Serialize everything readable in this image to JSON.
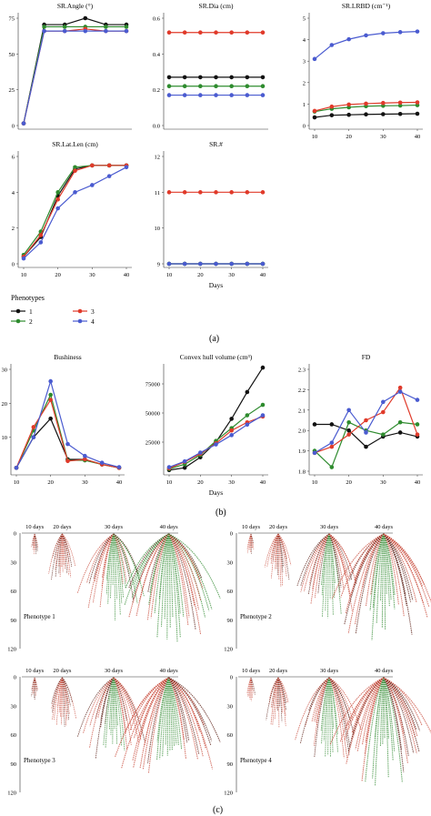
{
  "panel_labels": [
    "(a)",
    "(b)",
    "(c)"
  ],
  "colors": {
    "1": "#111111",
    "2": "#2e8b2e",
    "3": "#e03a2a",
    "4": "#4a5bd0"
  },
  "legend": {
    "title": "Phenotypes",
    "items": [
      "1",
      "2",
      "3",
      "4"
    ]
  },
  "chart_data": [
    {
      "type": "line",
      "title": "SR.Angle (°)",
      "x": [
        0,
        5,
        10,
        15,
        20,
        25
      ],
      "ylim": [
        0,
        50
      ],
      "yticks": [
        "0",
        "25",
        "50",
        "75"
      ],
      "xticks": [],
      "series": [
        {
          "name": "1",
          "values": [
            1,
            47,
            47,
            50,
            47,
            47
          ]
        },
        {
          "name": "2",
          "values": [
            1,
            46,
            46,
            46,
            46,
            46
          ]
        },
        {
          "name": "3",
          "values": [
            1,
            44,
            44,
            45,
            44,
            44
          ]
        },
        {
          "name": "4",
          "values": [
            1,
            44,
            44,
            44,
            44,
            44
          ]
        }
      ]
    },
    {
      "type": "line",
      "title": "SR.Dia (cm)",
      "x": [
        10,
        15,
        20,
        25,
        30,
        35,
        40
      ],
      "ylim": [
        0,
        0.6
      ],
      "yticks": [
        "0.0",
        "0.2",
        "0.4",
        "0.6"
      ],
      "xticks": [],
      "series": [
        {
          "name": "1",
          "values": [
            0.27,
            0.27,
            0.27,
            0.27,
            0.27,
            0.27,
            0.27
          ]
        },
        {
          "name": "2",
          "values": [
            0.22,
            0.22,
            0.22,
            0.22,
            0.22,
            0.22,
            0.22
          ]
        },
        {
          "name": "3",
          "values": [
            0.52,
            0.52,
            0.52,
            0.52,
            0.52,
            0.52,
            0.52
          ]
        },
        {
          "name": "4",
          "values": [
            0.17,
            0.17,
            0.17,
            0.17,
            0.17,
            0.17,
            0.17
          ]
        }
      ]
    },
    {
      "type": "line",
      "title": "SR.LRBD (cm⁻¹)",
      "x": [
        10,
        15,
        20,
        25,
        30,
        35,
        40
      ],
      "ylim": [
        0,
        5
      ],
      "yticks": [
        "0",
        "1",
        "2",
        "3",
        "4",
        "5"
      ],
      "xticks": [
        "10",
        "20",
        "30",
        "40"
      ],
      "series": [
        {
          "name": "1",
          "values": [
            0.38,
            0.48,
            0.5,
            0.52,
            0.53,
            0.54,
            0.55
          ]
        },
        {
          "name": "2",
          "values": [
            0.65,
            0.78,
            0.85,
            0.9,
            0.92,
            0.93,
            0.95
          ]
        },
        {
          "name": "3",
          "values": [
            0.68,
            0.88,
            0.98,
            1.02,
            1.05,
            1.07,
            1.08
          ]
        },
        {
          "name": "4",
          "values": [
            3.1,
            3.75,
            4.02,
            4.2,
            4.3,
            4.35,
            4.38
          ]
        }
      ]
    },
    {
      "type": "line",
      "title": "SR.Lat.Len (cm)",
      "x": [
        10,
        15,
        20,
        25,
        30,
        35,
        40
      ],
      "ylim": [
        0,
        6
      ],
      "yticks": [
        "0",
        "2",
        "4",
        "6"
      ],
      "xticks": [
        "10",
        "20",
        "30",
        "40"
      ],
      "series": [
        {
          "name": "1",
          "values": [
            0.4,
            1.5,
            3.8,
            5.3,
            5.5,
            5.5,
            5.5
          ]
        },
        {
          "name": "2",
          "values": [
            0.5,
            1.8,
            4.0,
            5.4,
            5.5,
            5.5,
            5.5
          ]
        },
        {
          "name": "3",
          "values": [
            0.4,
            1.6,
            3.6,
            5.2,
            5.5,
            5.5,
            5.5
          ]
        },
        {
          "name": "4",
          "values": [
            0.3,
            1.2,
            3.1,
            4.0,
            4.4,
            4.9,
            5.4
          ]
        }
      ]
    },
    {
      "type": "line",
      "title": "SR.#",
      "x": [
        10,
        15,
        20,
        25,
        30,
        35,
        40
      ],
      "ylim": [
        9,
        12
      ],
      "yticks": [
        "9",
        "10",
        "11",
        "12"
      ],
      "xticks": [
        "10",
        "20",
        "30",
        "40"
      ],
      "xlabel": "Days",
      "series": [
        {
          "name": "1",
          "values": [
            9,
            9,
            9,
            9,
            9,
            9,
            9
          ]
        },
        {
          "name": "2",
          "values": [
            9,
            9,
            9,
            9,
            9,
            9,
            9
          ]
        },
        {
          "name": "3",
          "values": [
            11,
            11,
            11,
            11,
            11,
            11,
            11
          ]
        },
        {
          "name": "4",
          "values": [
            9,
            9,
            9,
            9,
            9,
            9,
            9
          ]
        }
      ]
    },
    {
      "type": "line",
      "title": "Bushiness",
      "x": [
        10,
        15,
        20,
        25,
        30,
        35,
        40
      ],
      "ylim": [
        0,
        30
      ],
      "yticks": [
        "10",
        "20",
        "30"
      ],
      "xticks": [
        "10",
        "20",
        "30",
        "40"
      ],
      "series": [
        {
          "name": "1",
          "values": [
            1,
            10,
            15.5,
            3.5,
            3.5,
            2,
            1
          ]
        },
        {
          "name": "2",
          "values": [
            1,
            12,
            22.5,
            3.2,
            3.2,
            2,
            1
          ]
        },
        {
          "name": "3",
          "values": [
            1,
            13,
            21,
            3,
            3.5,
            2,
            1
          ]
        },
        {
          "name": "4",
          "values": [
            1,
            10,
            26.5,
            8,
            4.5,
            2.5,
            1.2
          ]
        }
      ]
    },
    {
      "type": "line",
      "title": "Convex hull volume (cm³)",
      "x": [
        10,
        15,
        20,
        25,
        30,
        35,
        40
      ],
      "ylim": [
        0,
        87500
      ],
      "yticks": [
        "25000",
        "50000",
        "75000"
      ],
      "xticks": [
        "10",
        "20",
        "30",
        "40"
      ],
      "xlabel": "Days",
      "series": [
        {
          "name": "1",
          "values": [
            1000,
            3000,
            12000,
            25000,
            45000,
            68000,
            89000
          ]
        },
        {
          "name": "2",
          "values": [
            2000,
            6000,
            14000,
            26000,
            37000,
            48000,
            57000
          ]
        },
        {
          "name": "3",
          "values": [
            2500,
            8000,
            15000,
            24000,
            35000,
            42000,
            47000
          ]
        },
        {
          "name": "4",
          "values": [
            3500,
            8500,
            16000,
            23000,
            31000,
            40000,
            48000
          ]
        }
      ]
    },
    {
      "type": "line",
      "title": "FD",
      "x": [
        10,
        15,
        20,
        25,
        30,
        35,
        40
      ],
      "ylim": [
        1.8,
        2.3
      ],
      "yticks": [
        "1.8",
        "1.9",
        "2.0",
        "2.1",
        "2.2",
        "2.3"
      ],
      "xticks": [
        "10",
        "20",
        "30",
        "40"
      ],
      "series": [
        {
          "name": "1",
          "values": [
            2.03,
            2.03,
            2.0,
            1.92,
            1.97,
            1.99,
            1.97
          ]
        },
        {
          "name": "2",
          "values": [
            1.9,
            1.82,
            2.04,
            2.0,
            1.98,
            2.04,
            2.03
          ]
        },
        {
          "name": "3",
          "values": [
            1.89,
            1.92,
            1.98,
            2.05,
            2.09,
            2.21,
            1.98
          ]
        },
        {
          "name": "4",
          "values": [
            1.89,
            1.94,
            2.1,
            1.99,
            2.14,
            2.19,
            2.15
          ]
        }
      ]
    }
  ],
  "root_panels": {
    "days": [
      "10 days",
      "20 days",
      "30 days",
      "40 days"
    ],
    "yticks": [
      "0",
      "30",
      "60",
      "90",
      "120"
    ],
    "phenotypes": [
      "Phenotype 1",
      "Phenotype 2",
      "Phenotype 3",
      "Phenotype 4"
    ]
  }
}
